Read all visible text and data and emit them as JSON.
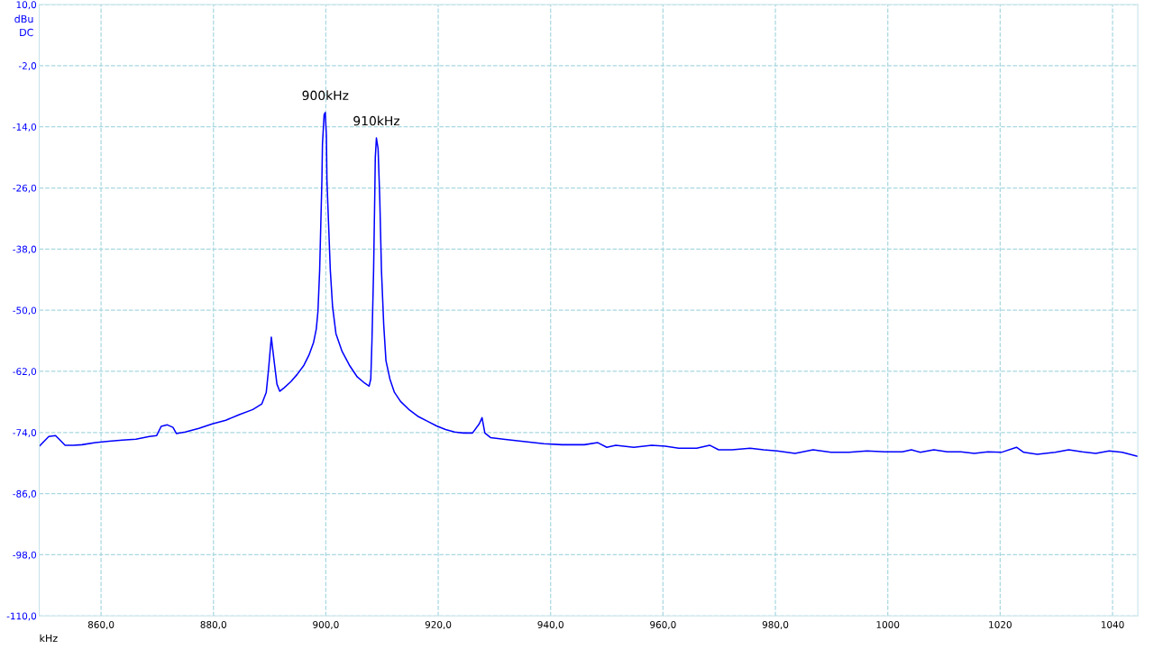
{
  "chart_data": {
    "type": "line",
    "xlabel": "kHz",
    "ylabel": "dBu",
    "annotations": [
      "DC",
      {
        "text": "900kHz",
        "x": 899.9,
        "y": -11.2
      },
      {
        "text": "910kHz",
        "x": 909.0,
        "y": -16.2
      }
    ],
    "series": [
      {
        "color": "#0000ff",
        "x": [
          849.0,
          849.8,
          850.7,
          851.9,
          852.7,
          853.6,
          855.1,
          856.6,
          859.0,
          861.4,
          863.8,
          866.2,
          868.6,
          869.9,
          870.7,
          871.8,
          872.8,
          873.4,
          875.0,
          877.4,
          879.8,
          882.2,
          884.6,
          887.0,
          888.6,
          889.4,
          889.8,
          890.3,
          890.8,
          891.3,
          891.8,
          892.6,
          893.8,
          894.9,
          896.1,
          897.0,
          897.8,
          898.3,
          898.6,
          898.9,
          899.1,
          899.3,
          899.4,
          899.7,
          899.9,
          900.1,
          900.2,
          900.5,
          900.8,
          901.2,
          901.8,
          902.9,
          904.2,
          905.6,
          906.9,
          907.7,
          908.0,
          908.2,
          908.5,
          908.7,
          908.8,
          909.0,
          909.3,
          909.6,
          909.9,
          910.3,
          910.7,
          911.4,
          912.2,
          913.3,
          914.9,
          916.5,
          918.1,
          919.7,
          921.3,
          922.9,
          924.5,
          926.1,
          927.3,
          927.8,
          928.3,
          929.3,
          931.6,
          934.8,
          938.8,
          942.0,
          946.0,
          948.4,
          950.0,
          951.6,
          954.8,
          958.0,
          960.4,
          962.8,
          966.0,
          968.3,
          969.9,
          972.3,
          975.5,
          977.9,
          980.3,
          983.5,
          986.7,
          989.9,
          993.1,
          996.3,
          999.5,
          1002.6,
          1004.2,
          1005.8,
          1008.2,
          1010.6,
          1013.0,
          1015.4,
          1017.8,
          1020.2,
          1022.9,
          1024.2,
          1026.6,
          1029.8,
          1032.2,
          1034.6,
          1037.0,
          1039.4,
          1041.7,
          1044.5
        ],
        "values": [
          -76.7,
          -75.8,
          -74.8,
          -74.6,
          -75.5,
          -76.5,
          -76.5,
          -76.4,
          -76.0,
          -75.7,
          -75.5,
          -75.3,
          -74.8,
          -74.6,
          -72.8,
          -72.5,
          -73.0,
          -74.2,
          -73.9,
          -73.2,
          -72.3,
          -71.6,
          -70.5,
          -69.5,
          -68.4,
          -66.1,
          -61.7,
          -55.3,
          -60.0,
          -64.5,
          -65.9,
          -65.2,
          -64.0,
          -62.6,
          -60.8,
          -58.8,
          -56.4,
          -53.7,
          -50.2,
          -42.2,
          -33.4,
          -24.5,
          -17.4,
          -11.6,
          -11.2,
          -15.7,
          -24.5,
          -33.4,
          -42.2,
          -49.3,
          -54.6,
          -58.1,
          -60.8,
          -63.1,
          -64.3,
          -64.9,
          -63.5,
          -56.4,
          -42.2,
          -28.1,
          -20.1,
          -16.2,
          -18.3,
          -28.1,
          -42.2,
          -52.8,
          -59.9,
          -63.5,
          -66.1,
          -67.9,
          -69.6,
          -70.9,
          -71.8,
          -72.7,
          -73.4,
          -73.9,
          -74.1,
          -74.1,
          -72.3,
          -71.1,
          -74.1,
          -75.0,
          -75.3,
          -75.7,
          -76.2,
          -76.4,
          -76.4,
          -76.0,
          -76.9,
          -76.5,
          -76.9,
          -76.5,
          -76.7,
          -77.1,
          -77.1,
          -76.5,
          -77.4,
          -77.4,
          -77.1,
          -77.4,
          -77.6,
          -78.1,
          -77.4,
          -77.9,
          -77.9,
          -77.6,
          -77.8,
          -77.8,
          -77.4,
          -77.9,
          -77.4,
          -77.8,
          -77.8,
          -78.1,
          -77.8,
          -77.9,
          -76.9,
          -77.9,
          -78.3,
          -77.9,
          -77.4,
          -77.8,
          -78.1,
          -77.6,
          -77.9,
          -78.7
        ]
      }
    ],
    "xlim": [
      849.0,
      1044.5
    ],
    "xticks": [
      {
        "value": 860,
        "label": "860,0"
      },
      {
        "value": 880,
        "label": "880,0"
      },
      {
        "value": 900,
        "label": "900,0"
      },
      {
        "value": 920,
        "label": "920,0"
      },
      {
        "value": 940,
        "label": "940,0"
      },
      {
        "value": 960,
        "label": "960,0"
      },
      {
        "value": 980,
        "label": "980,0"
      },
      1000,
      1020,
      1040
    ],
    "ylim": [
      -110,
      10
    ],
    "yticks": [
      {
        "value": 10,
        "label": "10,0"
      },
      {
        "value": -2,
        "label": "-2,0"
      },
      {
        "value": -14,
        "label": "-14,0"
      },
      {
        "value": -26,
        "label": "-26,0"
      },
      {
        "value": -38,
        "label": "-38,0"
      },
      {
        "value": -50,
        "label": "-50,0"
      },
      {
        "value": -62,
        "label": "-62,0"
      },
      {
        "value": -74,
        "label": "-74,0"
      },
      {
        "value": -86,
        "label": "-86,0"
      },
      {
        "value": -98,
        "label": "-98,0"
      },
      {
        "value": -110,
        "label": "-110,0"
      }
    ],
    "grid": true,
    "legend": false,
    "marker": "none",
    "line_style": "solid"
  }
}
